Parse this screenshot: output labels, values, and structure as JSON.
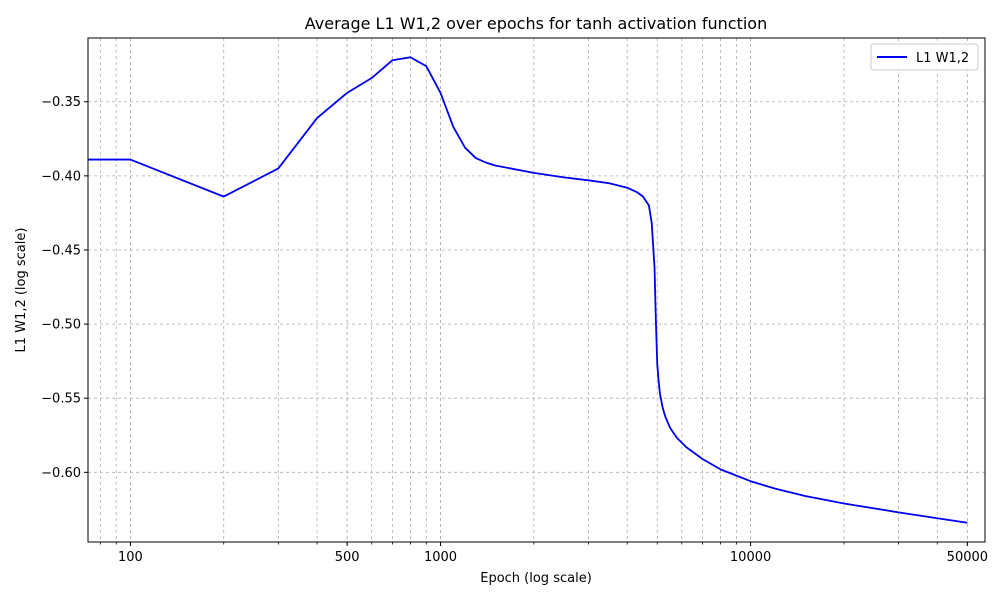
{
  "chart_data": {
    "type": "line",
    "title": "Average L1 W1,2 over epochs for tanh activation function",
    "xlabel": "Epoch (log scale)",
    "ylabel": "L1 W1,2 (log scale)",
    "x_scale": "log",
    "xlim": [
      73,
      57000
    ],
    "ylim": [
      -0.647,
      -0.307
    ],
    "x_ticks": [
      100,
      500,
      1000,
      10000,
      50000
    ],
    "x_tick_labels": [
      "100",
      "500",
      "1000",
      "10000",
      "50000"
    ],
    "y_ticks": [
      -0.35,
      -0.4,
      -0.45,
      -0.5,
      -0.55,
      -0.6
    ],
    "y_tick_labels": [
      "−0.35",
      "−0.40",
      "−0.45",
      "−0.50",
      "−0.55",
      "−0.60"
    ],
    "grid": true,
    "legend_position": "top-right",
    "colors": {
      "series": "#0000ee",
      "grid": "#b0b0b0"
    },
    "series": [
      {
        "name": "L1 W1,2",
        "x": [
          73,
          100,
          200,
          300,
          400,
          500,
          600,
          700,
          800,
          900,
          1000,
          1100,
          1200,
          1300,
          1400,
          1500,
          2000,
          2500,
          3000,
          3500,
          4000,
          4300,
          4500,
          4700,
          4800,
          4900,
          4950,
          5000,
          5050,
          5100,
          5200,
          5300,
          5500,
          5800,
          6200,
          7000,
          8000,
          10000,
          12000,
          15000,
          20000,
          30000,
          40000,
          50000
        ],
        "y": [
          -0.389,
          -0.389,
          -0.414,
          -0.395,
          -0.361,
          -0.344,
          -0.334,
          -0.322,
          -0.32,
          -0.326,
          -0.344,
          -0.367,
          -0.381,
          -0.388,
          -0.391,
          -0.393,
          -0.398,
          -0.401,
          -0.403,
          -0.405,
          -0.408,
          -0.411,
          -0.414,
          -0.42,
          -0.432,
          -0.462,
          -0.498,
          -0.527,
          -0.538,
          -0.547,
          -0.556,
          -0.562,
          -0.57,
          -0.577,
          -0.583,
          -0.591,
          -0.598,
          -0.606,
          -0.611,
          -0.616,
          -0.621,
          -0.627,
          -0.631,
          -0.634
        ]
      }
    ]
  }
}
